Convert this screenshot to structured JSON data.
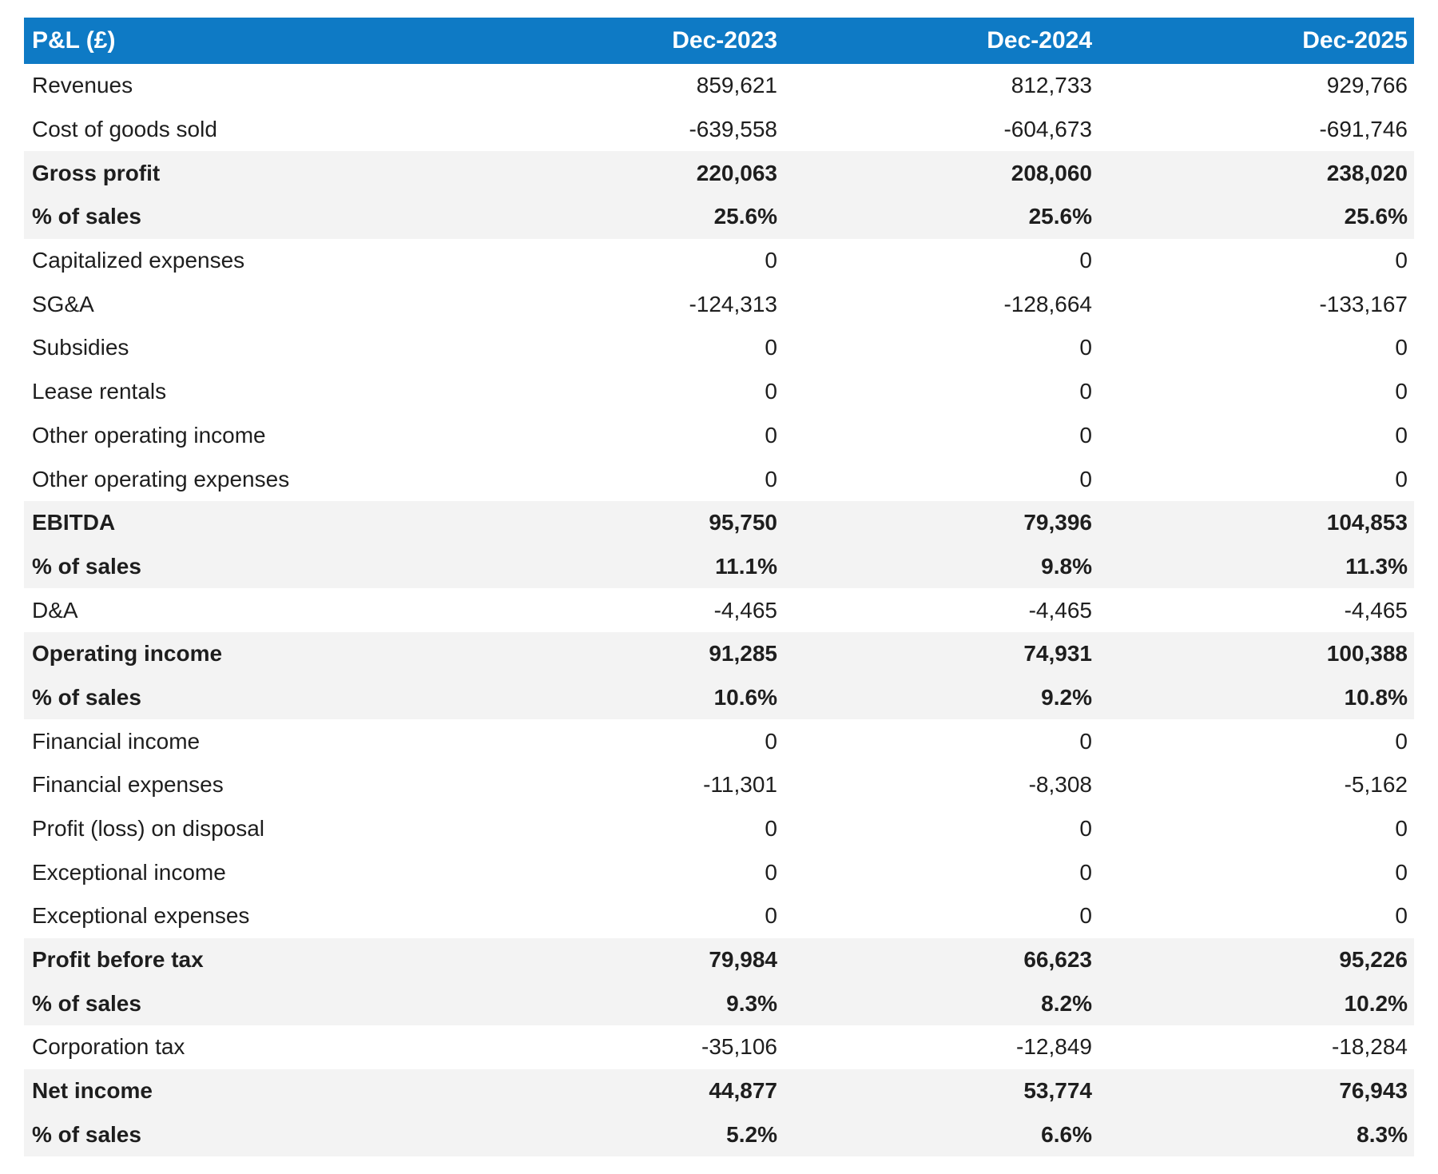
{
  "table": {
    "corner_label": "P&L (£)",
    "columns": [
      "Dec-2023",
      "Dec-2024",
      "Dec-2025"
    ],
    "rows": [
      {
        "label": "Revenues",
        "values": [
          "859,621",
          "812,733",
          "929,766"
        ],
        "emphasis": false
      },
      {
        "label": "Cost of goods sold",
        "values": [
          "-639,558",
          "-604,673",
          "-691,746"
        ],
        "emphasis": false
      },
      {
        "label": "Gross profit",
        "values": [
          "220,063",
          "208,060",
          "238,020"
        ],
        "emphasis": true
      },
      {
        "label": "% of sales",
        "values": [
          "25.6%",
          "25.6%",
          "25.6%"
        ],
        "emphasis": true
      },
      {
        "label": "Capitalized expenses",
        "values": [
          "0",
          "0",
          "0"
        ],
        "emphasis": false
      },
      {
        "label": "SG&A",
        "values": [
          "-124,313",
          "-128,664",
          "-133,167"
        ],
        "emphasis": false
      },
      {
        "label": "Subsidies",
        "values": [
          "0",
          "0",
          "0"
        ],
        "emphasis": false
      },
      {
        "label": "Lease rentals",
        "values": [
          "0",
          "0",
          "0"
        ],
        "emphasis": false
      },
      {
        "label": "Other operating income",
        "values": [
          "0",
          "0",
          "0"
        ],
        "emphasis": false
      },
      {
        "label": "Other operating expenses",
        "values": [
          "0",
          "0",
          "0"
        ],
        "emphasis": false
      },
      {
        "label": "EBITDA",
        "values": [
          "95,750",
          "79,396",
          "104,853"
        ],
        "emphasis": true
      },
      {
        "label": "% of sales",
        "values": [
          "11.1%",
          "9.8%",
          "11.3%"
        ],
        "emphasis": true
      },
      {
        "label": "D&A",
        "values": [
          "-4,465",
          "-4,465",
          "-4,465"
        ],
        "emphasis": false
      },
      {
        "label": "Operating income",
        "values": [
          "91,285",
          "74,931",
          "100,388"
        ],
        "emphasis": true
      },
      {
        "label": "% of sales",
        "values": [
          "10.6%",
          "9.2%",
          "10.8%"
        ],
        "emphasis": true
      },
      {
        "label": "Financial income",
        "values": [
          "0",
          "0",
          "0"
        ],
        "emphasis": false
      },
      {
        "label": "Financial expenses",
        "values": [
          "-11,301",
          "-8,308",
          "-5,162"
        ],
        "emphasis": false
      },
      {
        "label": "Profit (loss) on disposal",
        "values": [
          "0",
          "0",
          "0"
        ],
        "emphasis": false
      },
      {
        "label": "Exceptional income",
        "values": [
          "0",
          "0",
          "0"
        ],
        "emphasis": false
      },
      {
        "label": "Exceptional expenses",
        "values": [
          "0",
          "0",
          "0"
        ],
        "emphasis": false
      },
      {
        "label": "Profit before tax",
        "values": [
          "79,984",
          "66,623",
          "95,226"
        ],
        "emphasis": true
      },
      {
        "label": "% of sales",
        "values": [
          "9.3%",
          "8.2%",
          "10.2%"
        ],
        "emphasis": true
      },
      {
        "label": "Corporation tax",
        "values": [
          "-35,106",
          "-12,849",
          "-18,284"
        ],
        "emphasis": false
      },
      {
        "label": "Net income",
        "values": [
          "44,877",
          "53,774",
          "76,943"
        ],
        "emphasis": true
      },
      {
        "label": "% of sales",
        "values": [
          "5.2%",
          "6.6%",
          "8.3%"
        ],
        "emphasis": true
      }
    ],
    "colors": {
      "header_bg": "#0e7ac5",
      "header_text": "#ffffff",
      "band_bg": "#f3f3f3",
      "body_text": "#1e1e1e",
      "page_bg": "#ffffff"
    }
  }
}
